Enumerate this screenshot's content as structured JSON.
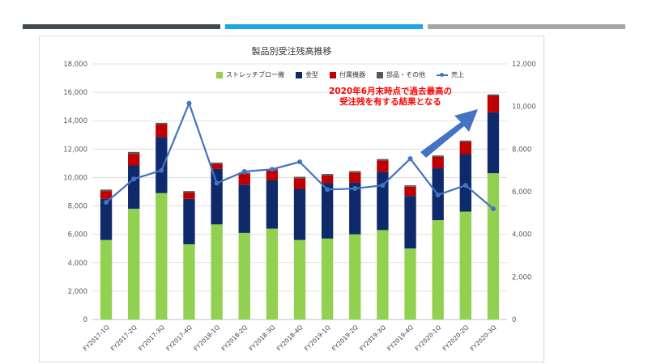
{
  "colors": {
    "topbar_left": "#404a52",
    "topbar_mid": "#1aa7e3",
    "topbar_right": "#a6a6a6",
    "stretch": "#92d050",
    "kanagata": "#0f2a6b",
    "fuzoku": "#c00000",
    "buhin": "#595959",
    "sales": "#4472c4",
    "arrow": "#4472c4"
  },
  "chart_data": {
    "type": "bar",
    "title": "製品別受注残高推移",
    "categories": [
      "FY2017-1Q",
      "FY2017-2Q",
      "FY2017-3Q",
      "FY2017-4Q",
      "FY2018-1Q",
      "FY2018-2Q",
      "FY2018-3Q",
      "FY2018-4Q",
      "FY2019-1Q",
      "FY2019-2Q",
      "FY2019-3Q",
      "FY2019-4Q",
      "FY2020-1Q",
      "FY2020-2Q",
      "FY2020-3Q"
    ],
    "series": [
      {
        "name": "ストレッチブロー機",
        "axis": "left",
        "values": [
          5600,
          7800,
          8900,
          5300,
          6700,
          6100,
          6400,
          5600,
          5700,
          6000,
          6300,
          5000,
          7000,
          7600,
          10300
        ]
      },
      {
        "name": "金型",
        "axis": "left",
        "values": [
          2900,
          3050,
          3950,
          3200,
          3900,
          3400,
          3400,
          3600,
          3900,
          3650,
          4100,
          3700,
          3650,
          4050,
          4300
        ]
      },
      {
        "name": "付属機器",
        "axis": "left",
        "values": [
          550,
          800,
          900,
          450,
          350,
          750,
          700,
          750,
          550,
          700,
          800,
          650,
          800,
          850,
          1150
        ]
      },
      {
        "name": "部品・その他",
        "axis": "left",
        "values": [
          100,
          150,
          100,
          100,
          100,
          100,
          100,
          100,
          100,
          100,
          100,
          100,
          100,
          100,
          100
        ]
      },
      {
        "name": "売上",
        "axis": "right",
        "type": "line",
        "values": [
          5500,
          6600,
          7000,
          10150,
          6400,
          6950,
          7050,
          7400,
          6100,
          6150,
          6300,
          7550,
          5850,
          6300,
          5200
        ]
      }
    ],
    "ylim_left": [
      0,
      18000
    ],
    "yticks_left": [
      "0",
      "2,000",
      "4,000",
      "6,000",
      "8,000",
      "10,000",
      "12,000",
      "14,000",
      "16,000",
      "18,000"
    ],
    "ylim_right": [
      0,
      12000
    ],
    "yticks_right": [
      "0",
      "2,000",
      "4,000",
      "6,000",
      "8,000",
      "10,000",
      "12,000"
    ],
    "legend_position": "top",
    "grid": true,
    "annotation": {
      "line1": "2020年6月末時点で過去最高の",
      "line2": "受注残を有する結果となる"
    }
  }
}
